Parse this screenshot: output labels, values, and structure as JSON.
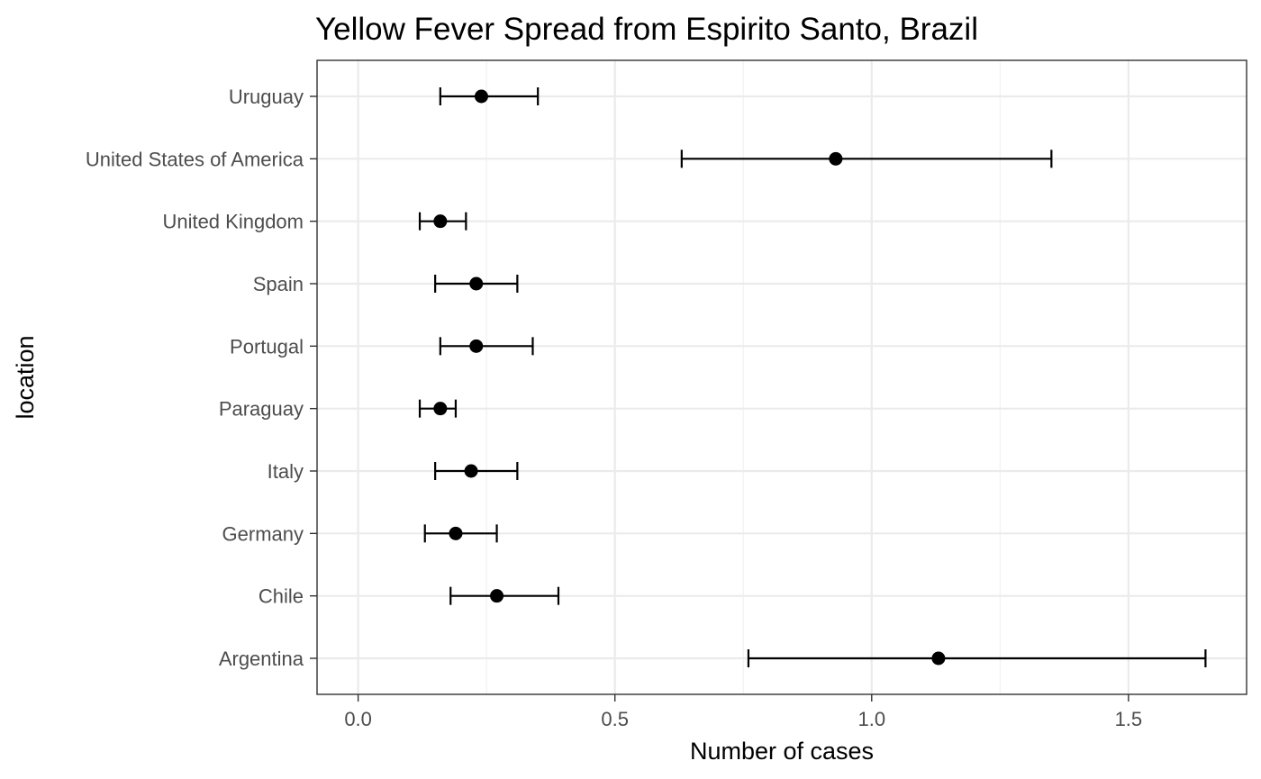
{
  "chart_data": {
    "type": "scatter",
    "subtype": "point-range",
    "title": "Yellow Fever Spread from Espirito Santo, Brazil",
    "xlabel": "Number of cases",
    "ylabel": "location",
    "xlim": [
      -0.08,
      1.73
    ],
    "x_ticks": [
      "0.0",
      "0.5",
      "1.0",
      "1.5"
    ],
    "x_tick_values": [
      0.0,
      0.5,
      1.0,
      1.5
    ],
    "grid": true,
    "legend": "none",
    "categories": [
      "Uruguay",
      "United States of America",
      "United Kingdom",
      "Spain",
      "Portugal",
      "Paraguay",
      "Italy",
      "Germany",
      "Chile",
      "Argentina"
    ],
    "points": [
      {
        "location": "Uruguay",
        "value": 0.24,
        "lower": 0.16,
        "upper": 0.35
      },
      {
        "location": "United States of America",
        "value": 0.93,
        "lower": 0.63,
        "upper": 1.35
      },
      {
        "location": "United Kingdom",
        "value": 0.16,
        "lower": 0.12,
        "upper": 0.21
      },
      {
        "location": "Spain",
        "value": 0.23,
        "lower": 0.15,
        "upper": 0.31
      },
      {
        "location": "Portugal",
        "value": 0.23,
        "lower": 0.16,
        "upper": 0.34
      },
      {
        "location": "Paraguay",
        "value": 0.16,
        "lower": 0.12,
        "upper": 0.19
      },
      {
        "location": "Italy",
        "value": 0.22,
        "lower": 0.15,
        "upper": 0.31
      },
      {
        "location": "Germany",
        "value": 0.19,
        "lower": 0.13,
        "upper": 0.27
      },
      {
        "location": "Chile",
        "value": 0.27,
        "lower": 0.18,
        "upper": 0.39
      },
      {
        "location": "Argentina",
        "value": 1.13,
        "lower": 0.76,
        "upper": 1.65
      }
    ],
    "colors": {
      "point": "#000000",
      "panel_border": "#333333",
      "major_grid": "#ebebeb",
      "minor_grid": "#f2f2f2",
      "tick_label": "#4d4d4d"
    }
  }
}
